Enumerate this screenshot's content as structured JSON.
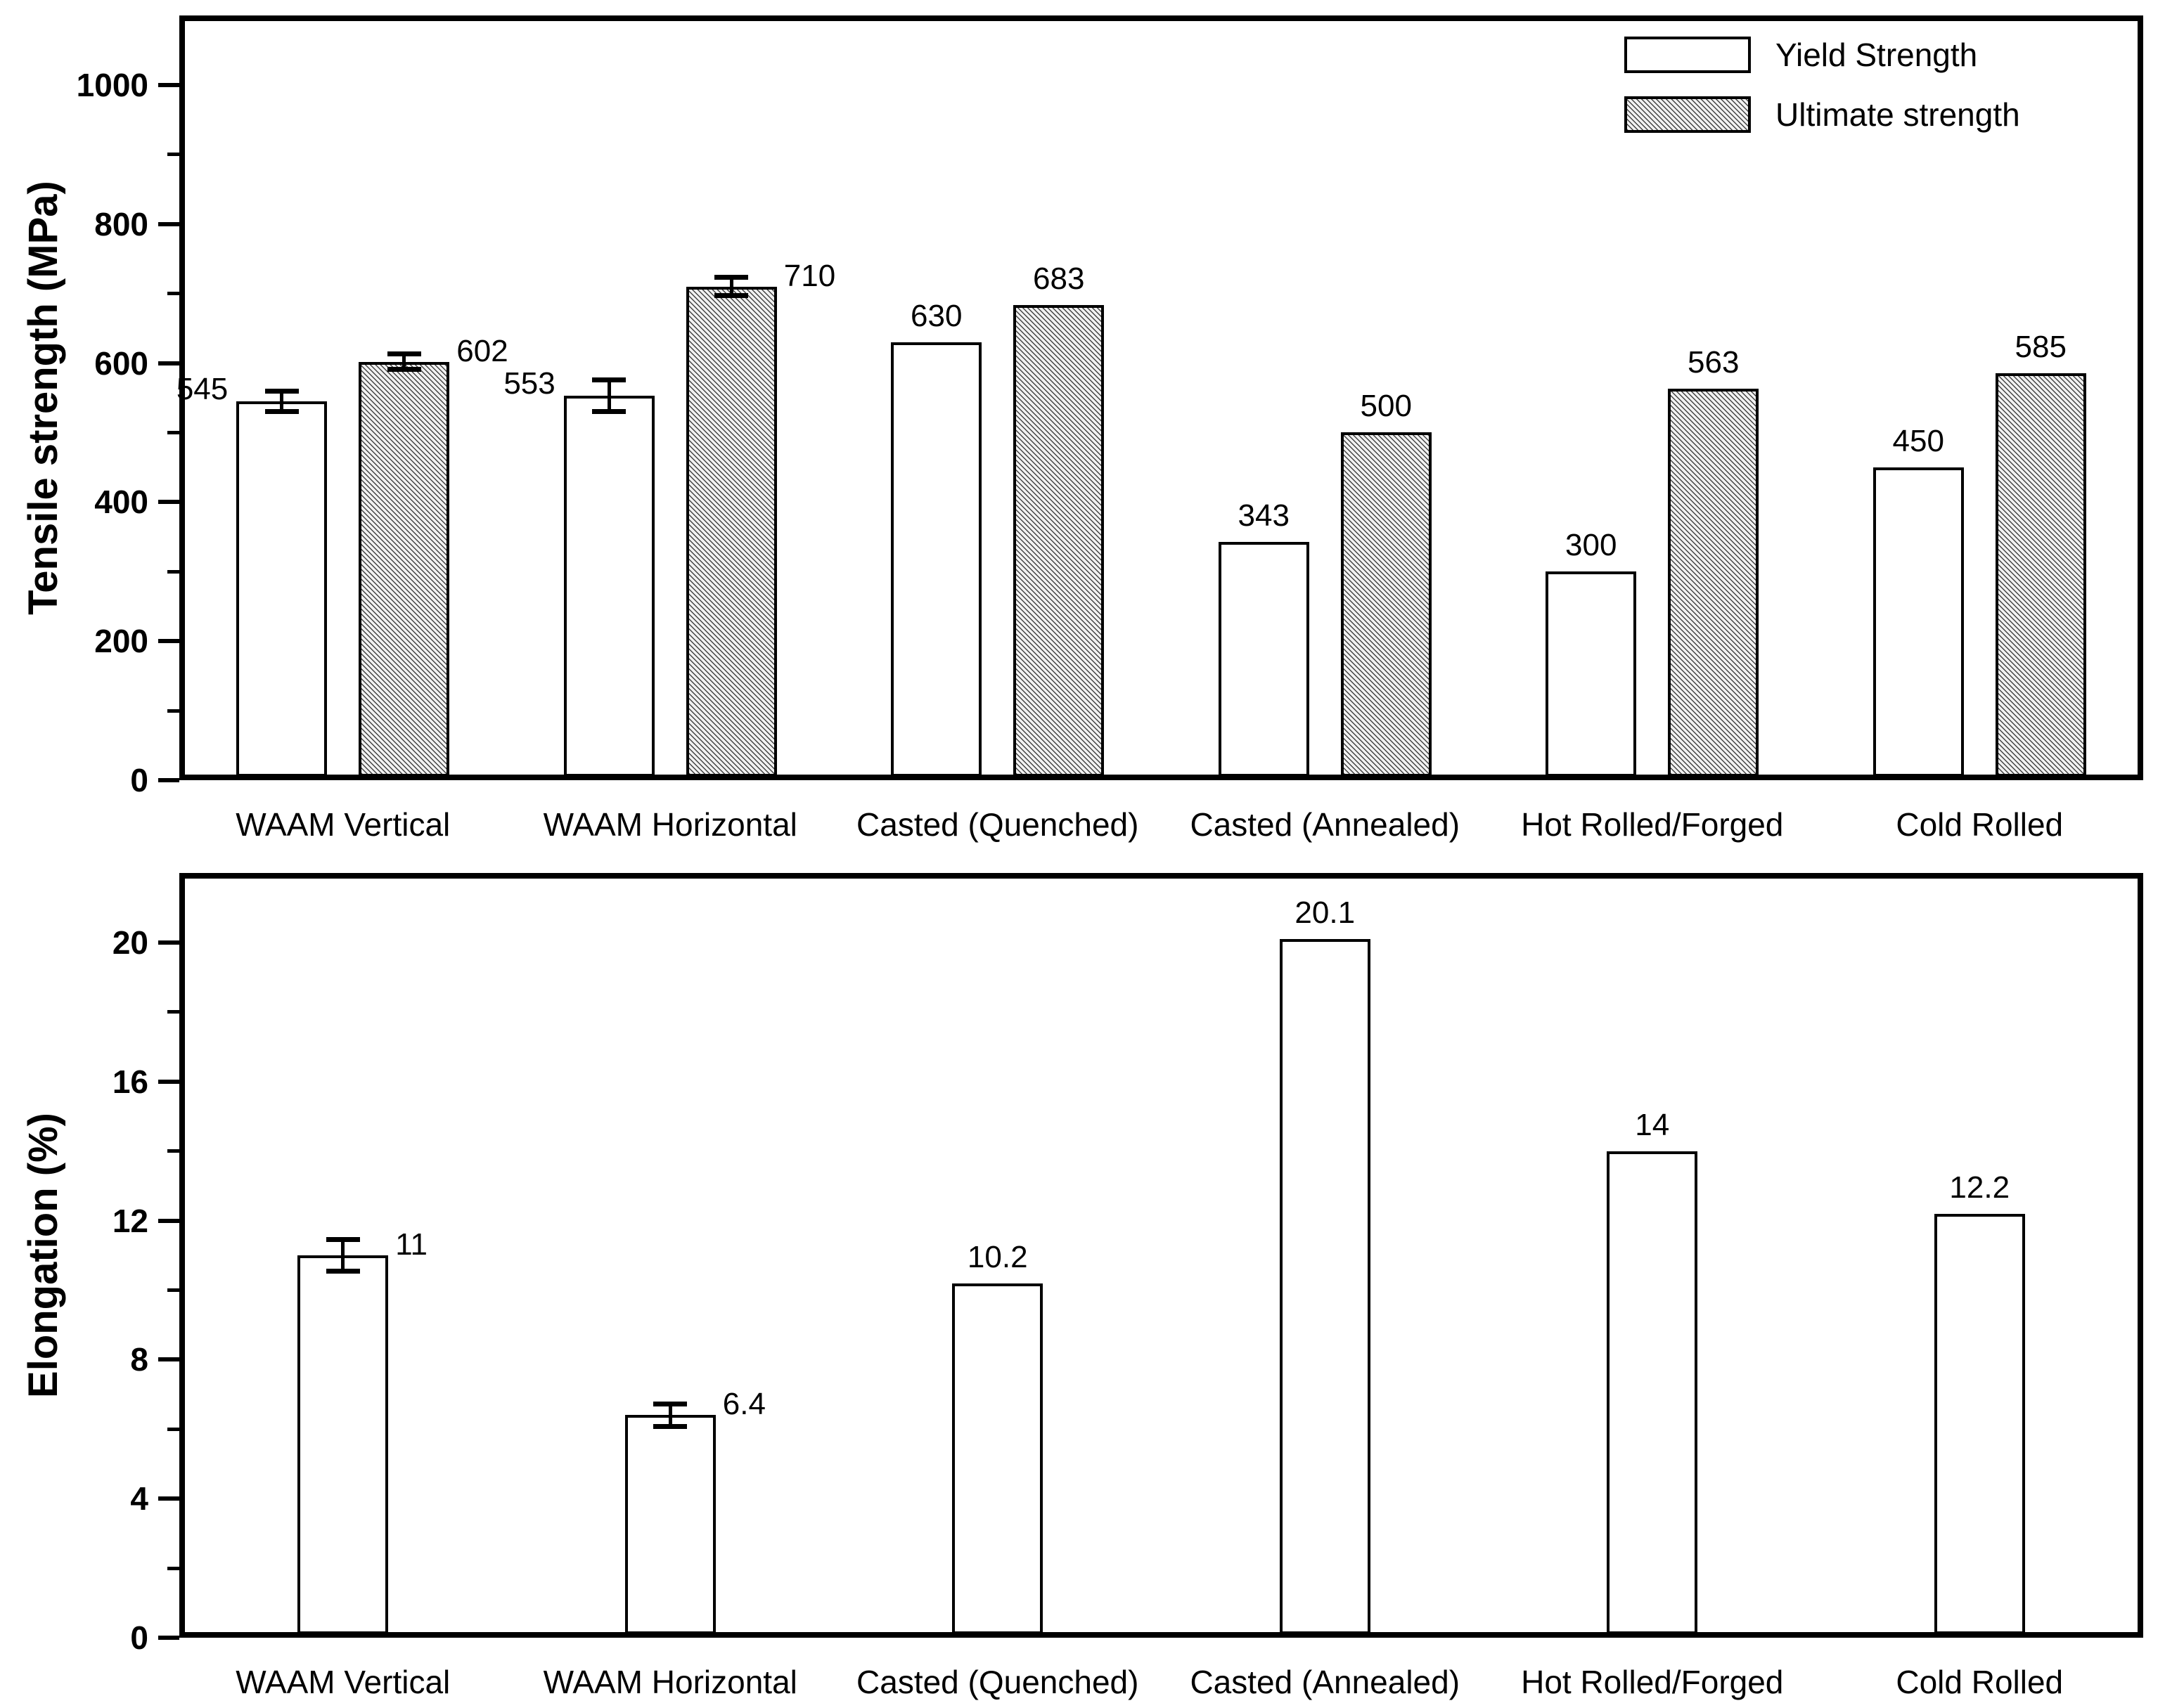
{
  "figure": {
    "background": "#ffffff",
    "ink_color": "#000000",
    "hatch_base_color": "#f1f1f1"
  },
  "chart_data": [
    {
      "type": "bar",
      "id": "tensile",
      "title": "",
      "xlabel": "",
      "ylabel": "Tensile strength (MPa)",
      "ylim": [
        0,
        1100
      ],
      "yticks_major": [
        0,
        200,
        400,
        600,
        800,
        1000
      ],
      "yticks_minor": [
        100,
        300,
        500,
        700,
        900
      ],
      "grid": false,
      "legend_position": "top-right",
      "legend": {
        "entries": [
          {
            "label": "Yield Strength",
            "fill": "white"
          },
          {
            "label": "Ultimate strength",
            "fill": "hatch"
          }
        ]
      },
      "categories": [
        "WAAM Vertical",
        "WAAM Horizontal",
        "Casted (Quenched)",
        "Casted (Annealed)",
        "Hot Rolled/Forged",
        "Cold Rolled"
      ],
      "series": [
        {
          "name": "Yield Strength",
          "fill": "white",
          "values": [
            545,
            553,
            630,
            343,
            300,
            450
          ],
          "errors": [
            15,
            23,
            null,
            null,
            null,
            null
          ],
          "label_side": [
            "left",
            "left",
            "center",
            "center",
            "center",
            "center"
          ]
        },
        {
          "name": "Ultimate strength",
          "fill": "hatch",
          "values": [
            602,
            710,
            683,
            500,
            563,
            585
          ],
          "errors": [
            11,
            13,
            null,
            null,
            null,
            null
          ],
          "label_side": [
            "right",
            "right",
            "center",
            "center",
            "center",
            "center"
          ]
        }
      ]
    },
    {
      "type": "bar",
      "id": "elongation",
      "title": "",
      "xlabel": "",
      "ylabel": "Elongation (%)",
      "ylim": [
        0,
        22
      ],
      "yticks_major": [
        0,
        4,
        8,
        12,
        16,
        20
      ],
      "yticks_minor": [
        2,
        6,
        10,
        14,
        18
      ],
      "grid": false,
      "legend_position": "none",
      "categories": [
        "WAAM Vertical",
        "WAAM Horizontal",
        "Casted (Quenched)",
        "Casted (Annealed)",
        "Hot Rolled/Forged",
        "Cold Rolled"
      ],
      "series": [
        {
          "name": "Elongation",
          "fill": "white",
          "values": [
            11,
            6.4,
            10.2,
            20.1,
            14,
            12.2
          ],
          "errors": [
            0.45,
            0.32,
            null,
            null,
            null,
            null
          ],
          "label_side": [
            "right",
            "right",
            "center",
            "center",
            "center",
            "center"
          ]
        }
      ]
    }
  ]
}
